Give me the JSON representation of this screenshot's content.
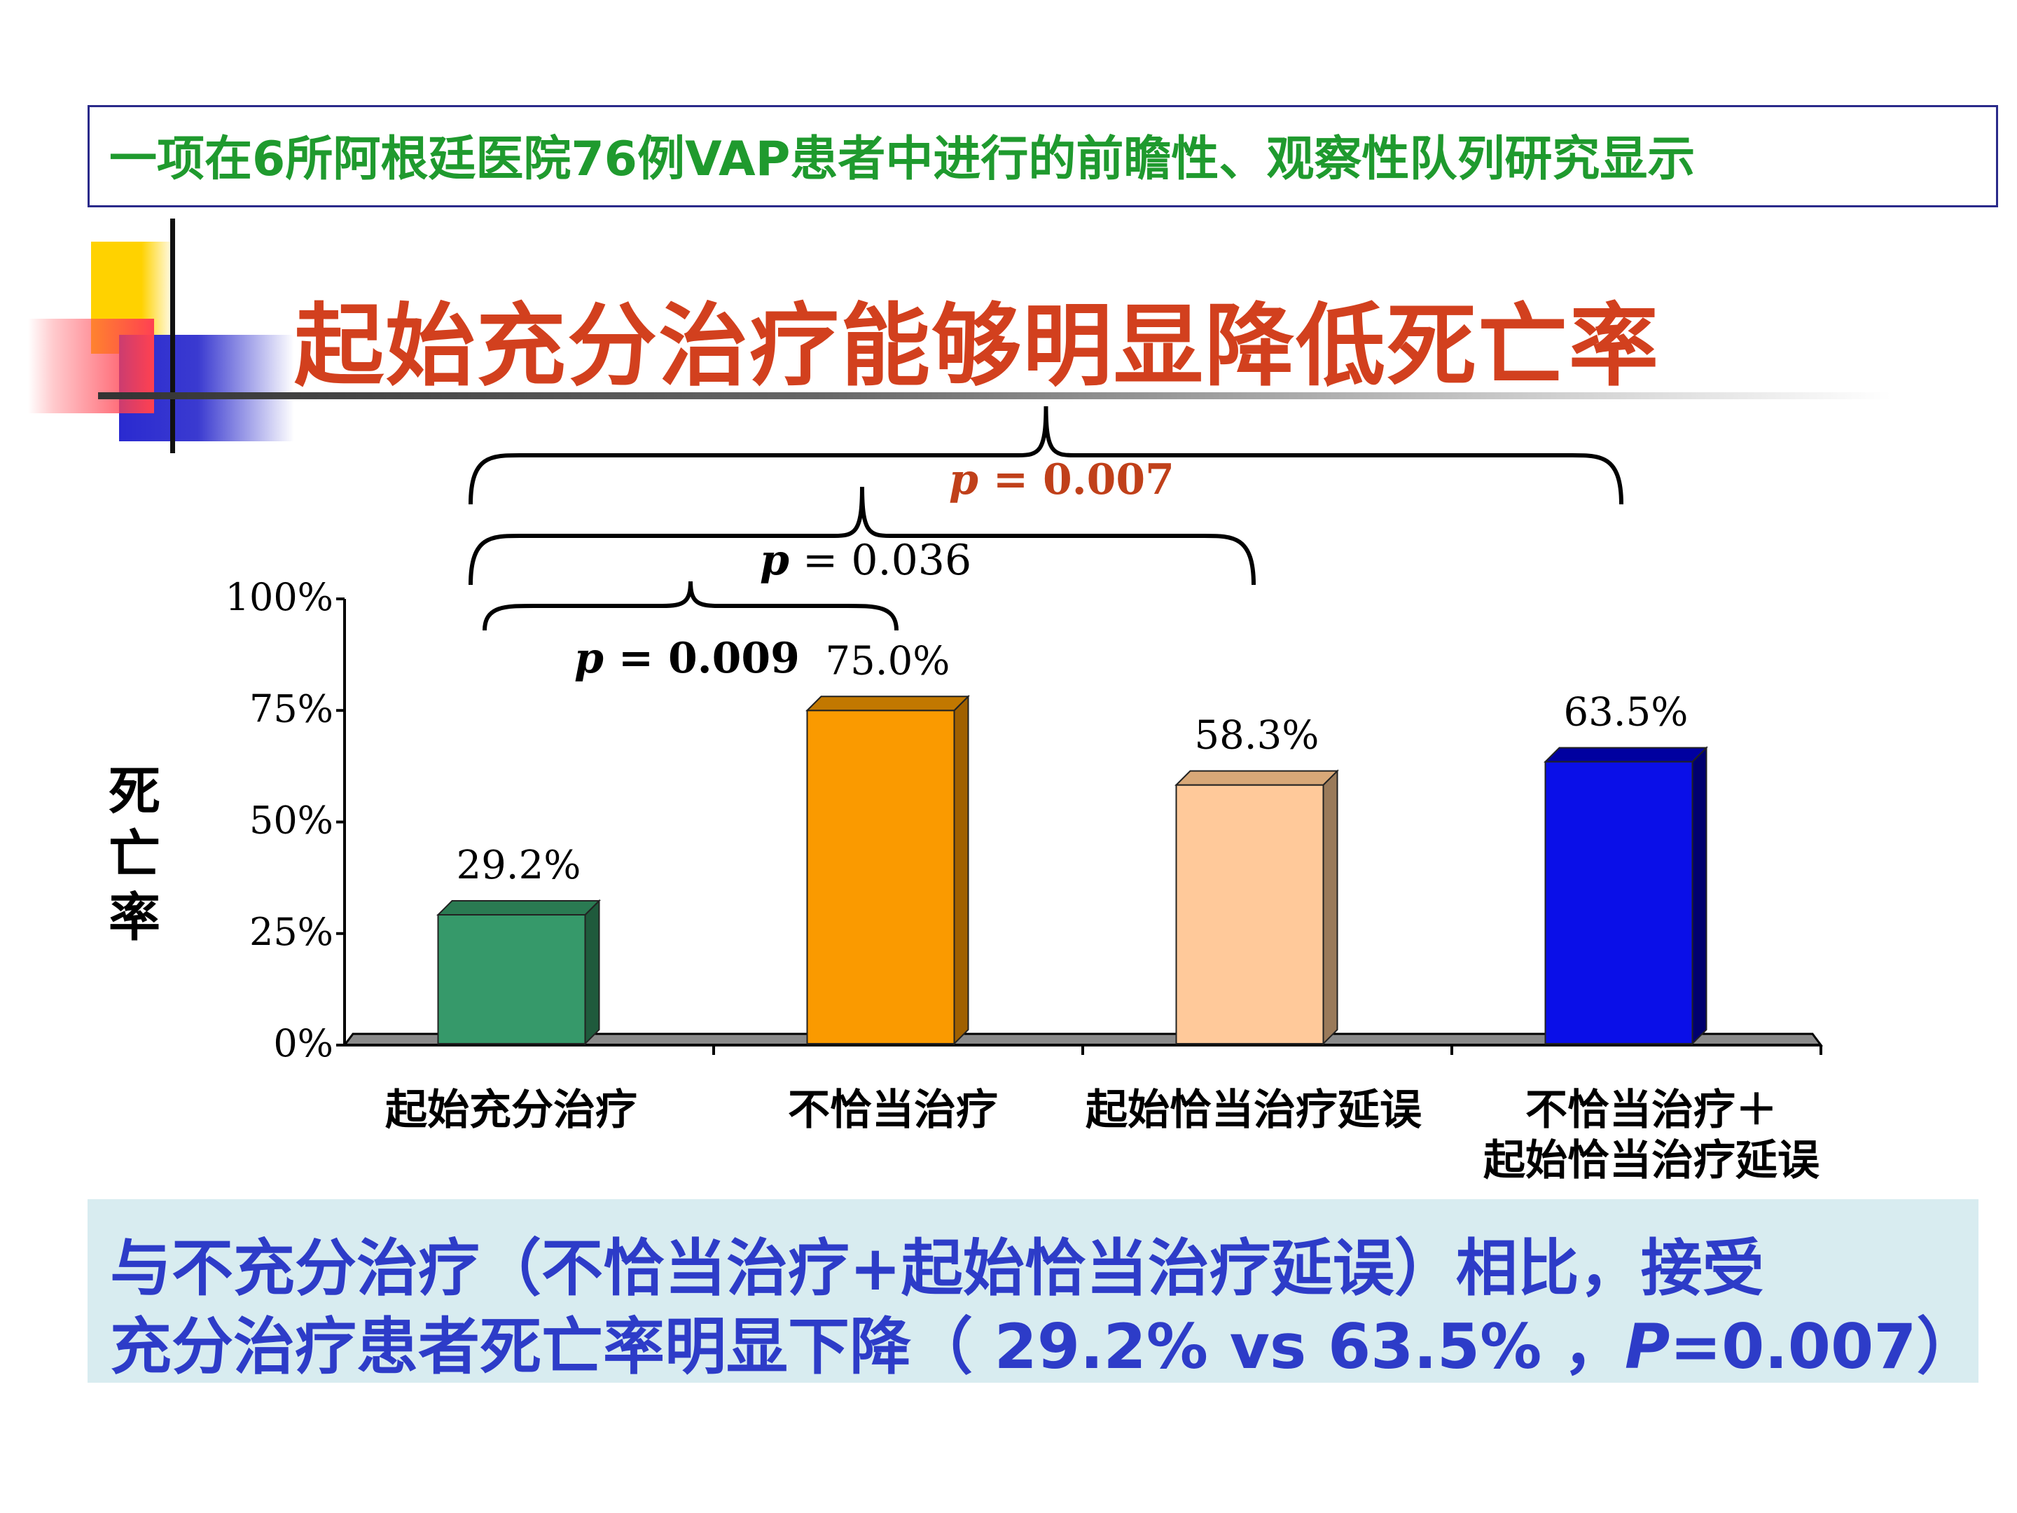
{
  "study_banner": "一项在6所阿根廷医院76例VAP患者中进行的前瞻性、观察性队列研究显示",
  "slide_title": "起始充分治疗能够明显降低死亡率",
  "summary": {
    "line1": "与不充分治疗（不恰当治疗+起始恰当治疗延误）相比，接受",
    "line2_prefix": "充分治疗患者死亡率明显下降（ 29.2%  vs 63.5% ，",
    "line2_p": "P",
    "line2_suffix": "=0.007）"
  },
  "comparisons": [
    {
      "p_label": "p",
      "eq": " = 0.009",
      "color": "#000000",
      "bold": true
    },
    {
      "p_label": "p",
      "eq": " = 0.036",
      "color": "#000000",
      "bold": false
    },
    {
      "p_label": "p",
      "eq": " = 0.007",
      "color": "#c0401a",
      "bold": true
    }
  ],
  "colors": {
    "banner_text": "#1f9a2e",
    "title_text": "#d2401e",
    "summary_text": "#2d3cc8",
    "summary_bg": "#d8ecf0"
  },
  "chart_data": {
    "type": "bar",
    "ylabel": "死亡率",
    "ylim": [
      0,
      100
    ],
    "yticks": [
      "0%",
      "25%",
      "50%",
      "75%",
      "100%"
    ],
    "categories": [
      "起始充分治疗",
      "不恰当治疗",
      "起始恰当治疗延误",
      "不恰当治疗＋\n起始恰当治疗延误"
    ],
    "values": [
      29.2,
      75.0,
      58.3,
      63.5
    ],
    "value_labels": [
      "29.2%",
      "75.0%",
      "58.3%",
      "63.5%"
    ],
    "bar_colors": [
      "#36996a",
      "#fa9a00",
      "#ffc99a",
      "#0a0fe8"
    ],
    "bar_side_colors": [
      "#1f5a3c",
      "#a06000",
      "#9a7a5a",
      "#00006e"
    ],
    "bar_top_colors": [
      "#2a7a52",
      "#c27800",
      "#d8a878",
      "#0000a0"
    ],
    "grid": false,
    "legend": "none"
  }
}
